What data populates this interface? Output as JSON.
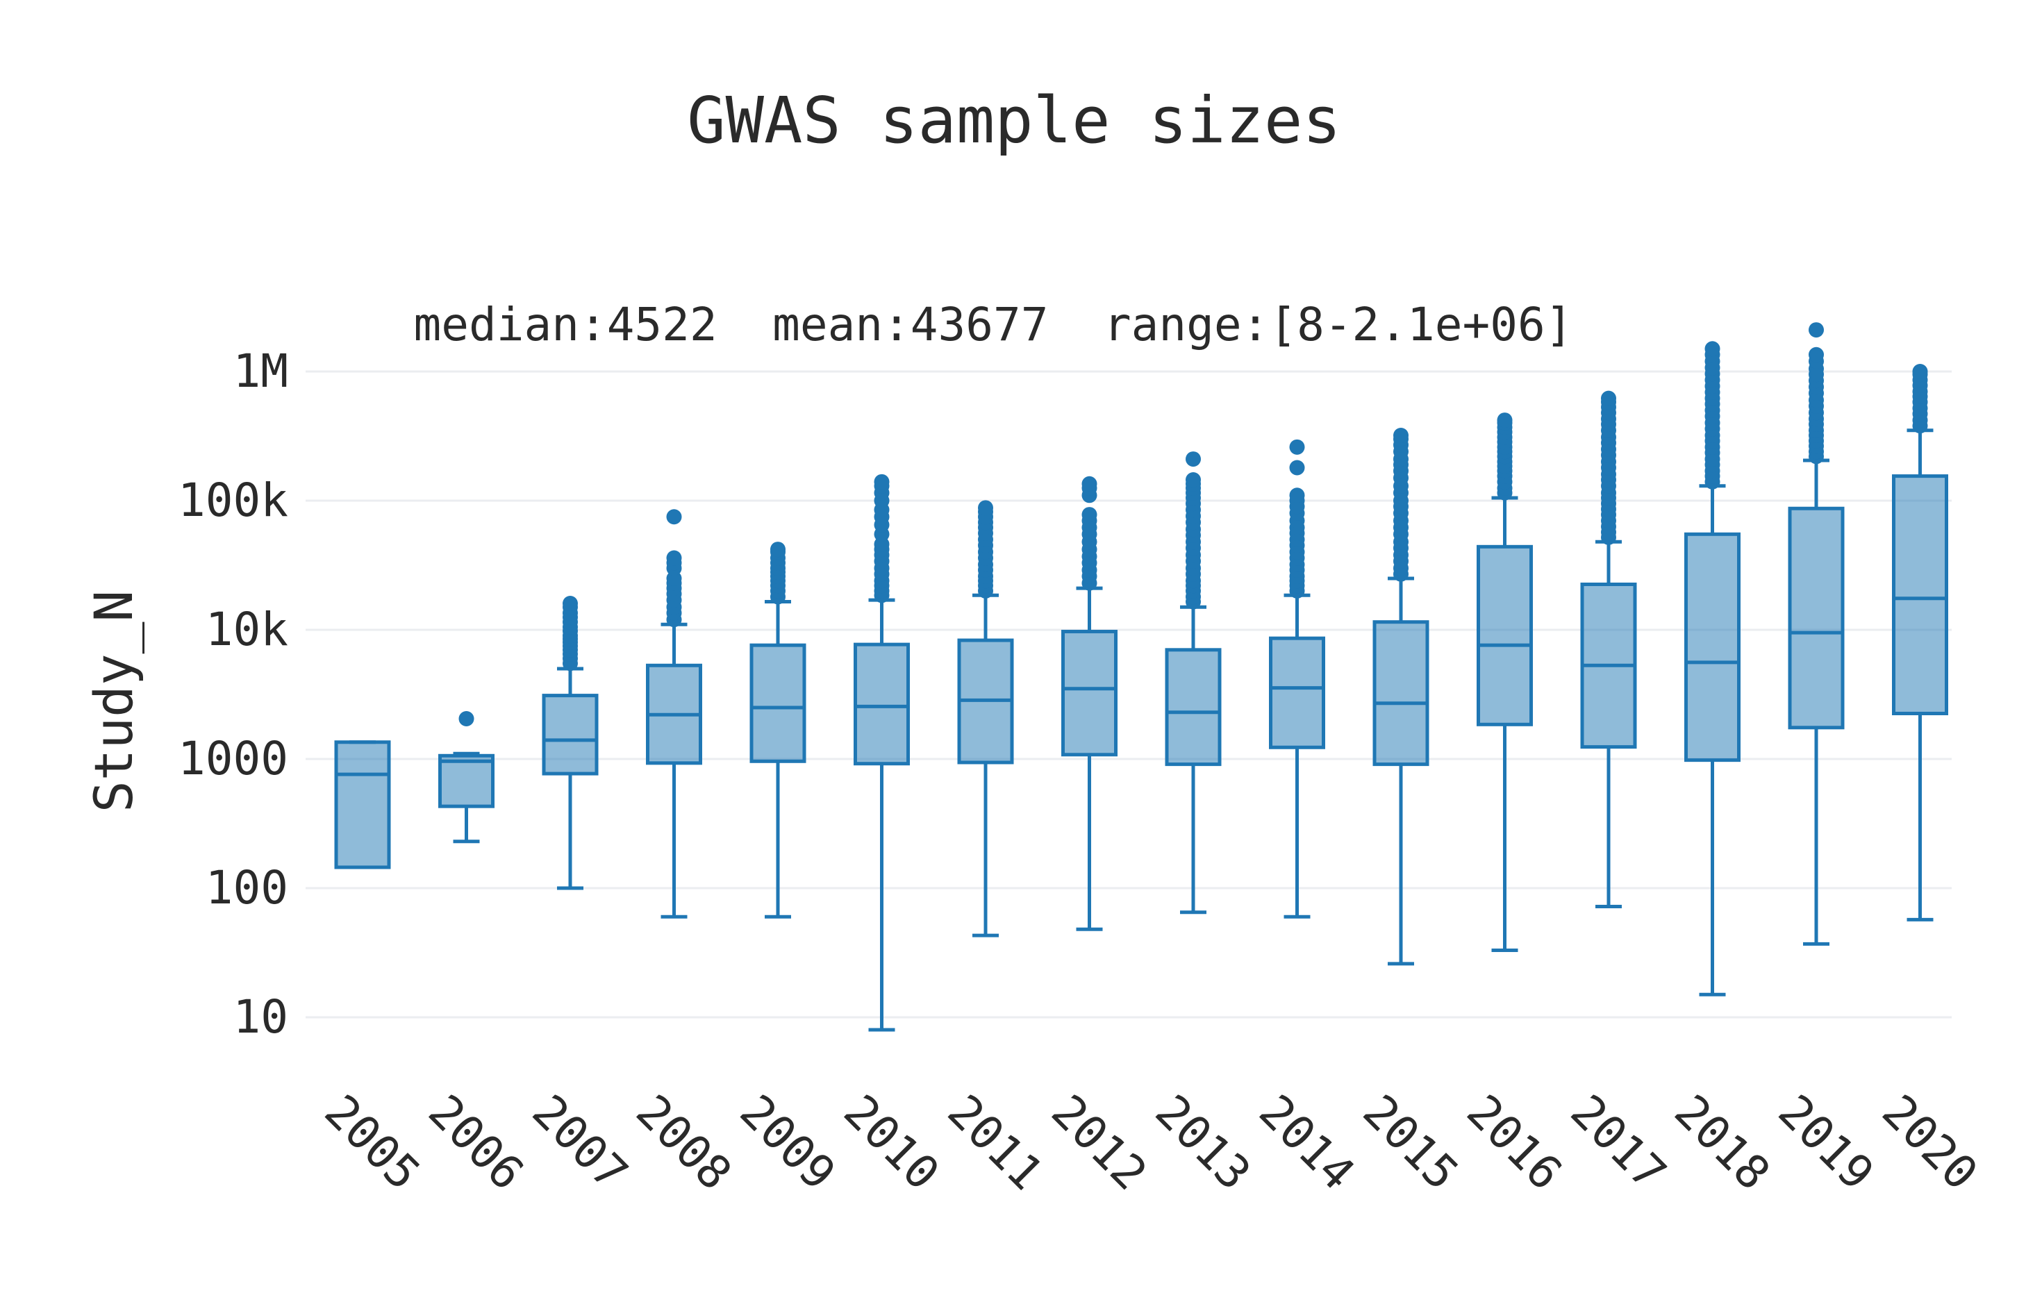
{
  "chart_data": {
    "type": "box",
    "title": "GWAS sample sizes",
    "annotation": "median:4522  mean:43677  range:[8-2.1e+06]",
    "xlabel": "",
    "ylabel": "Study_N",
    "yscale": "log",
    "ylim": [
      4.5,
      2000000
    ],
    "yticks": [
      {
        "value": 10,
        "label": "10"
      },
      {
        "value": 100,
        "label": "100"
      },
      {
        "value": 1000,
        "label": "1000"
      },
      {
        "value": 10000,
        "label": "10k"
      },
      {
        "value": 100000,
        "label": "100k"
      },
      {
        "value": 1000000,
        "label": "1M"
      }
    ],
    "grid": true,
    "legend": "none",
    "colors": {
      "line": "#1f77b4",
      "fill": "#1f77b4",
      "grid": "#ebedf0",
      "text": "#2a2a2a"
    },
    "categories": [
      "2005",
      "2006",
      "2007",
      "2008",
      "2009",
      "2010",
      "2011",
      "2012",
      "2013",
      "2014",
      "2015",
      "2016",
      "2017",
      "2018",
      "2019",
      "2020"
    ],
    "boxes": [
      {
        "year": "2005",
        "lower": 145,
        "q1": 145,
        "median": 760,
        "q3": 1350,
        "upper": 1350,
        "outliers": []
      },
      {
        "year": "2006",
        "lower": 230,
        "q1": 430,
        "median": 960,
        "q3": 1060,
        "upper": 1100,
        "outliers": [
          2050
        ]
      },
      {
        "year": "2007",
        "lower": 100,
        "q1": 770,
        "median": 1400,
        "q3": 3100,
        "upper": 5000,
        "outliers": [
          5500,
          6000,
          6500,
          7000,
          7500,
          8000,
          8500,
          9000,
          9800,
          10500,
          11500,
          12500,
          13500,
          15000,
          16000
        ]
      },
      {
        "year": "2008",
        "lower": 60,
        "q1": 930,
        "median": 2200,
        "q3": 5300,
        "upper": 11000,
        "outliers": [
          12000,
          13500,
          15000,
          17000,
          19000,
          21000,
          23000,
          25000,
          30000,
          33000,
          36000,
          75000
        ]
      },
      {
        "year": "2009",
        "lower": 60,
        "q1": 960,
        "median": 2500,
        "q3": 7600,
        "upper": 16500,
        "outliers": [
          18000,
          20000,
          22000,
          24000,
          26000,
          28000,
          30000,
          33000,
          36000,
          40000,
          42000
        ]
      },
      {
        "year": "2010",
        "lower": 8,
        "q1": 920,
        "median": 2550,
        "q3": 7700,
        "upper": 17000,
        "outliers": [
          18500,
          20000,
          22000,
          24000,
          27000,
          30000,
          34000,
          38000,
          42000,
          46000,
          55000,
          65000,
          75000,
          85000,
          100000,
          115000,
          130000,
          140000
        ]
      },
      {
        "year": "2011",
        "lower": 43,
        "q1": 940,
        "median": 2850,
        "q3": 8300,
        "upper": 18500,
        "outliers": [
          20000,
          22000,
          24000,
          26000,
          29000,
          32000,
          36000,
          40000,
          45000,
          50000,
          56000,
          62000,
          68000,
          75000,
          82000,
          88000
        ]
      },
      {
        "year": "2012",
        "lower": 48,
        "q1": 1080,
        "median": 3500,
        "q3": 9700,
        "upper": 21000,
        "outliers": [
          23000,
          26000,
          29000,
          33000,
          37000,
          42000,
          48000,
          55000,
          62000,
          70000,
          78000,
          110000,
          125000,
          135000
        ]
      },
      {
        "year": "2013",
        "lower": 65,
        "q1": 910,
        "median": 2300,
        "q3": 7000,
        "upper": 15000,
        "outliers": [
          16500,
          18000,
          20000,
          22000,
          24000,
          27000,
          30000,
          34000,
          38000,
          43000,
          48000,
          54000,
          60000,
          68000,
          76000,
          85000,
          95000,
          105000,
          115000,
          125000,
          135000,
          145000,
          210000
        ]
      },
      {
        "year": "2014",
        "lower": 60,
        "q1": 1230,
        "median": 3550,
        "q3": 8600,
        "upper": 18500,
        "outliers": [
          20000,
          22000,
          24000,
          26000,
          29000,
          32000,
          36000,
          40000,
          45000,
          50000,
          56000,
          62000,
          70000,
          80000,
          90000,
          100000,
          110000,
          180000,
          260000
        ]
      },
      {
        "year": "2015",
        "lower": 26,
        "q1": 910,
        "median": 2700,
        "q3": 11500,
        "upper": 25000,
        "outliers": [
          27000,
          30000,
          34000,
          38000,
          43000,
          48000,
          55000,
          62000,
          70000,
          80000,
          90000,
          100000,
          115000,
          130000,
          150000,
          170000,
          190000,
          210000,
          240000,
          270000,
          300000,
          320000
        ]
      },
      {
        "year": "2016",
        "lower": 33,
        "q1": 1850,
        "median": 7600,
        "q3": 44000,
        "upper": 105000,
        "outliers": [
          115000,
          125000,
          140000,
          155000,
          170000,
          185000,
          200000,
          220000,
          240000,
          260000,
          285000,
          310000,
          340000,
          370000,
          400000,
          420000
        ]
      },
      {
        "year": "2017",
        "lower": 72,
        "q1": 1240,
        "median": 5300,
        "q3": 22500,
        "upper": 48000,
        "outliers": [
          52000,
          57000,
          63000,
          70000,
          78000,
          86000,
          95000,
          105000,
          115000,
          130000,
          145000,
          160000,
          180000,
          200000,
          225000,
          250000,
          280000,
          310000,
          350000,
          390000,
          430000,
          480000,
          530000,
          580000,
          620000
        ]
      },
      {
        "year": "2018",
        "lower": 15,
        "q1": 980,
        "median": 5600,
        "q3": 55000,
        "upper": 130000,
        "outliers": [
          140000,
          155000,
          170000,
          190000,
          210000,
          235000,
          260000,
          290000,
          320000,
          360000,
          400000,
          450000,
          500000,
          560000,
          620000,
          690000,
          770000,
          860000,
          960000,
          1070000,
          1200000,
          1350000,
          1500000
        ]
      },
      {
        "year": "2019",
        "lower": 37,
        "q1": 1750,
        "median": 9500,
        "q3": 87000,
        "upper": 205000,
        "outliers": [
          220000,
          240000,
          265000,
          290000,
          320000,
          350000,
          390000,
          430000,
          480000,
          540000,
          600000,
          680000,
          760000,
          850000,
          950000,
          1050000,
          1200000,
          1350000,
          2100000
        ]
      },
      {
        "year": "2020",
        "lower": 57,
        "q1": 2250,
        "median": 17500,
        "q3": 155000,
        "upper": 350000,
        "outliers": [
          380000,
          420000,
          470000,
          520000,
          580000,
          640000,
          700000,
          780000,
          860000,
          950000,
          1000000
        ]
      }
    ]
  }
}
